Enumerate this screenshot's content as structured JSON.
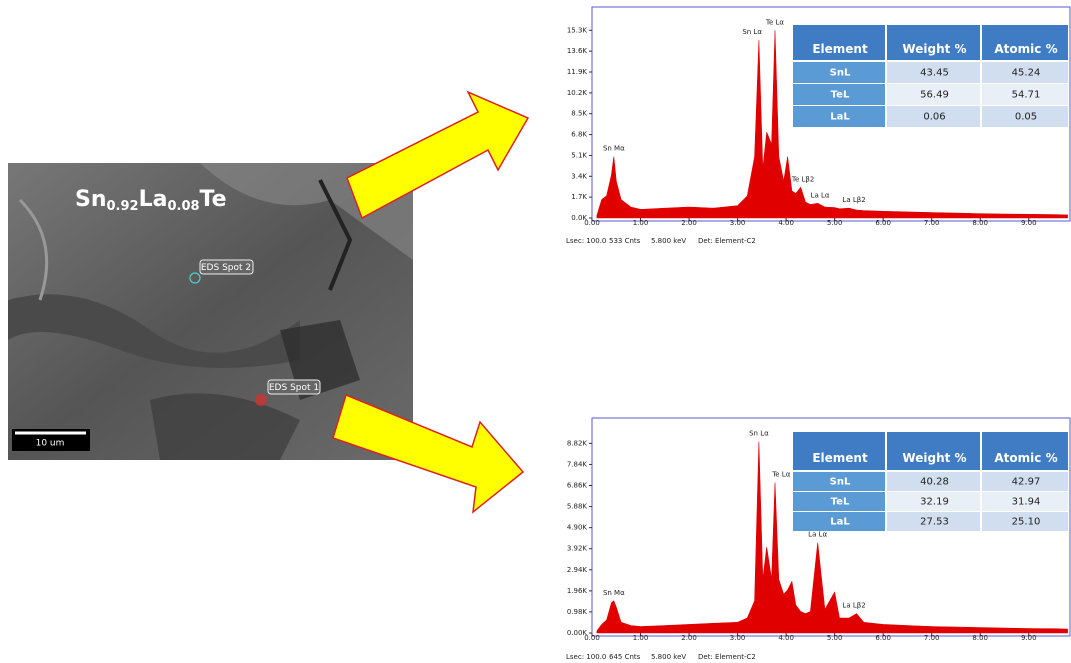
{
  "sem": {
    "formula": {
      "parts": [
        "Sn",
        "0.92",
        "La",
        "0.08",
        "Te"
      ]
    },
    "spot_labels": [
      "EDS Spot 2",
      "EDS Spot 1"
    ],
    "scale_bar": "10 um"
  },
  "chart_data": [
    {
      "type": "area",
      "color": "#e00000",
      "x": [
        0.1,
        0.2,
        0.3,
        0.4,
        0.45,
        0.5,
        0.6,
        0.8,
        1.0,
        1.5,
        2.0,
        2.5,
        3.0,
        3.2,
        3.35,
        3.44,
        3.52,
        3.6,
        3.7,
        3.77,
        3.85,
        3.95,
        4.03,
        4.12,
        4.2,
        4.3,
        4.4,
        4.5,
        4.65,
        4.8,
        5.0,
        5.1,
        5.3,
        5.45,
        5.6,
        6.0,
        6.5,
        7.0,
        7.5,
        8.0,
        8.5,
        9.0,
        9.5,
        9.8
      ],
      "values": [
        200,
        1500,
        1800,
        3500,
        5000,
        3000,
        1500,
        900,
        700,
        800,
        900,
        800,
        1000,
        1800,
        5000,
        14500,
        4000,
        7000,
        6000,
        15300,
        5000,
        3000,
        5000,
        2200,
        2000,
        2500,
        1300,
        1100,
        1200,
        900,
        850,
        750,
        800,
        650,
        600,
        550,
        500,
        450,
        400,
        350,
        330,
        300,
        280,
        250
      ],
      "xlim": [
        0,
        9.85
      ],
      "ylim": [
        0,
        17200
      ],
      "xticks": [
        {
          "value": 0,
          "label": "0.00"
        },
        {
          "value": 1,
          "label": "1.00"
        },
        {
          "value": 2,
          "label": "2.00"
        },
        {
          "value": 3,
          "label": "3.00"
        },
        {
          "value": 4,
          "label": "4.00"
        },
        {
          "value": 5,
          "label": "5.00"
        },
        {
          "value": 6,
          "label": "6.00"
        },
        {
          "value": 7,
          "label": "7.00"
        },
        {
          "value": 8,
          "label": "8.00"
        },
        {
          "value": 9,
          "label": "9.00"
        }
      ],
      "yticks": [
        {
          "value": 0,
          "label": "0.0K"
        },
        {
          "value": 1700,
          "label": "1.7K"
        },
        {
          "value": 3400,
          "label": "3.4K"
        },
        {
          "value": 5100,
          "label": "5.1K"
        },
        {
          "value": 6800,
          "label": "6.8K"
        },
        {
          "value": 8500,
          "label": "8.5K"
        },
        {
          "value": 10200,
          "label": "10.2K"
        },
        {
          "value": 11900,
          "label": "11.9K"
        },
        {
          "value": 13600,
          "label": "13.6K"
        },
        {
          "value": 15300,
          "label": "15.3K"
        }
      ],
      "annotations": [
        {
          "text": "Sn Mα",
          "x": 0.45,
          "y": 5000
        },
        {
          "text": "Sn Lα",
          "x": 3.3,
          "y": 14500
        },
        {
          "text": "Te Lα",
          "x": 3.77,
          "y": 15300
        },
        {
          "text": "Te Lβ2",
          "x": 4.35,
          "y": 2500
        },
        {
          "text": "La Lα",
          "x": 4.7,
          "y": 1200
        },
        {
          "text": "La Lβ2",
          "x": 5.4,
          "y": 800
        }
      ],
      "footer": [
        "Lsec: 100.0",
        "533 Cnts",
        "5.800 keV",
        "Det: Element-C2"
      ],
      "table": {
        "header": [
          "Element",
          "Weight %",
          "Atomic %"
        ],
        "rows": [
          [
            "SnL",
            "43.45",
            "45.24"
          ],
          [
            "TeL",
            "56.49",
            "54.71"
          ],
          [
            "LaL",
            "0.06",
            "0.05"
          ]
        ]
      }
    },
    {
      "type": "area",
      "color": "#e00000",
      "x": [
        0.1,
        0.2,
        0.3,
        0.4,
        0.45,
        0.5,
        0.6,
        0.8,
        1.0,
        1.5,
        2.0,
        2.5,
        3.0,
        3.2,
        3.35,
        3.44,
        3.52,
        3.6,
        3.7,
        3.77,
        3.85,
        3.95,
        4.03,
        4.12,
        4.2,
        4.3,
        4.4,
        4.5,
        4.65,
        4.8,
        5.0,
        5.1,
        5.3,
        5.45,
        5.6,
        6.0,
        6.5,
        7.0,
        7.5,
        8.0,
        8.5,
        9.0,
        9.5,
        9.8
      ],
      "values": [
        100,
        400,
        600,
        1400,
        1500,
        1200,
        500,
        350,
        300,
        350,
        400,
        450,
        500,
        700,
        1500,
        8900,
        2500,
        4000,
        2500,
        7000,
        2500,
        1800,
        2000,
        2400,
        1300,
        1000,
        900,
        1000,
        4200,
        1100,
        1900,
        700,
        700,
        900,
        500,
        400,
        350,
        300,
        280,
        250,
        230,
        210,
        200,
        180
      ],
      "xlim": [
        0,
        9.85
      ],
      "ylim": [
        0,
        10000
      ],
      "xticks": [
        {
          "value": 0,
          "label": "0.00"
        },
        {
          "value": 1,
          "label": "1.00"
        },
        {
          "value": 2,
          "label": "2.00"
        },
        {
          "value": 3,
          "label": "3.00"
        },
        {
          "value": 4,
          "label": "4.00"
        },
        {
          "value": 5,
          "label": "5.00"
        },
        {
          "value": 6,
          "label": "6.00"
        },
        {
          "value": 7,
          "label": "7.00"
        },
        {
          "value": 8,
          "label": "8.00"
        },
        {
          "value": 9,
          "label": "9.00"
        }
      ],
      "yticks": [
        {
          "value": 0,
          "label": "0.00K"
        },
        {
          "value": 980,
          "label": "0.98K"
        },
        {
          "value": 1960,
          "label": "1.96K"
        },
        {
          "value": 2940,
          "label": "2.94K"
        },
        {
          "value": 3920,
          "label": "3.92K"
        },
        {
          "value": 4900,
          "label": "4.90K"
        },
        {
          "value": 5880,
          "label": "5.88K"
        },
        {
          "value": 6860,
          "label": "6.86K"
        },
        {
          "value": 7840,
          "label": "7.84K"
        },
        {
          "value": 8820,
          "label": "8.82K"
        }
      ],
      "annotations": [
        {
          "text": "Sn Mα",
          "x": 0.45,
          "y": 1500
        },
        {
          "text": "Sn Lα",
          "x": 3.44,
          "y": 8900
        },
        {
          "text": "Te Lα",
          "x": 3.9,
          "y": 7000
        },
        {
          "text": "La Lα",
          "x": 4.65,
          "y": 4200
        },
        {
          "text": "La Lβ2",
          "x": 5.4,
          "y": 900
        }
      ],
      "footer": [
        "Lsec: 100.0",
        "645 Cnts",
        "5.800 keV",
        "Det: Element-C2"
      ],
      "table": {
        "header": [
          "Element",
          "Weight %",
          "Atomic %"
        ],
        "rows": [
          [
            "SnL",
            "40.28",
            "42.97"
          ],
          [
            "TeL",
            "32.19",
            "31.94"
          ],
          [
            "LaL",
            "27.53",
            "25.10"
          ]
        ]
      }
    }
  ]
}
